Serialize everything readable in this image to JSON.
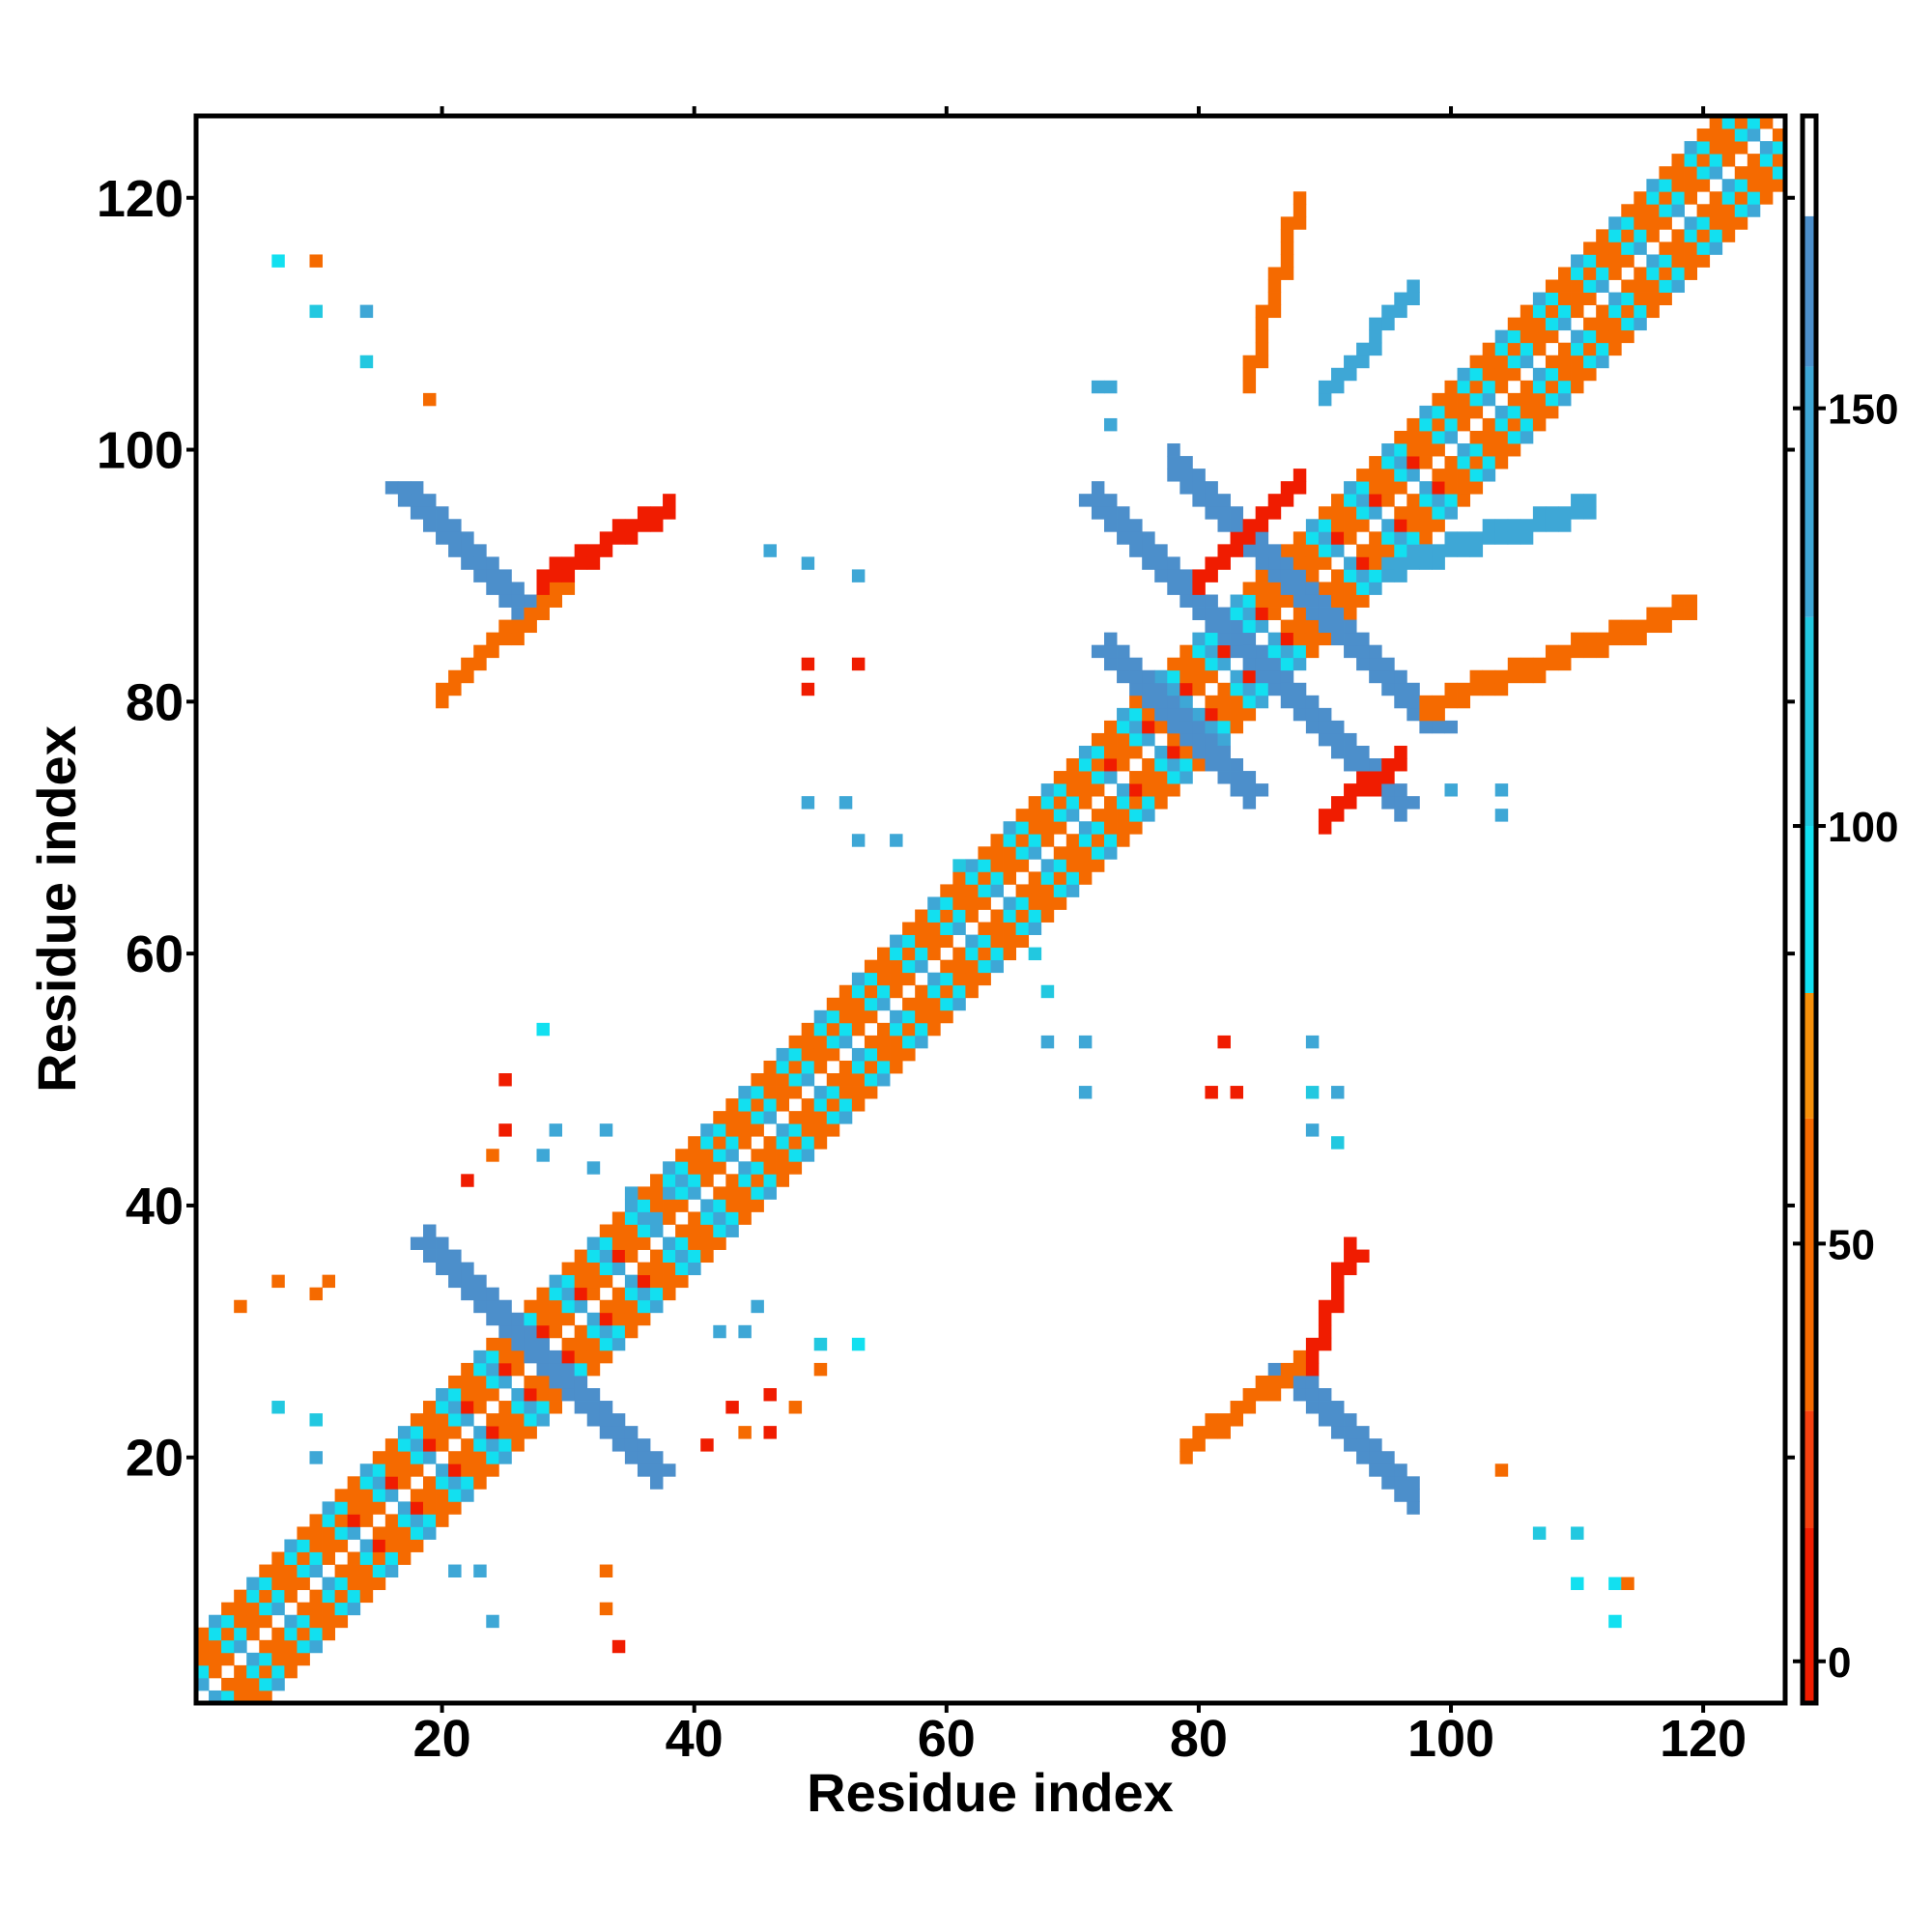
{
  "chart_data": {
    "type": "heatmap",
    "title": "",
    "xlabel": "Residue index",
    "ylabel": "Residue index",
    "xlim": [
      1,
      126
    ],
    "ylim": [
      1,
      126
    ],
    "x_ticks": [
      20,
      40,
      60,
      80,
      100,
      120
    ],
    "y_ticks": [
      20,
      40,
      60,
      80,
      100,
      120
    ],
    "colorbar": {
      "range": [
        -5,
        185
      ],
      "ticks": [
        0,
        50,
        100,
        150
      ],
      "bands": [
        {
          "from": -5,
          "to": 16,
          "color": "#f01c00"
        },
        {
          "from": 16,
          "to": 30,
          "color": "#f5400f"
        },
        {
          "from": 30,
          "to": 65,
          "color": "#f56a00"
        },
        {
          "from": 65,
          "to": 80,
          "color": "#f5900a"
        },
        {
          "from": 80,
          "to": 100,
          "color": "#12e0f0"
        },
        {
          "from": 100,
          "to": 125,
          "color": "#22c8e0"
        },
        {
          "from": 125,
          "to": 155,
          "color": "#3ea7d6"
        },
        {
          "from": 155,
          "to": 173,
          "color": "#4c8fcb"
        },
        {
          "from": 173,
          "to": 185,
          "color": "#ffffff"
        }
      ]
    },
    "colors": {
      "red": "#f01c00",
      "orange_red": "#f5400f",
      "orange": "#f56a00",
      "light_orange": "#f5900a",
      "cyan": "#12e0f0",
      "light_blue": "#22c8e0",
      "steel_blue": "#3ea7d6",
      "slate_blue": "#4c8fcb"
    },
    "series": [
      {
        "pattern": "diagonal-band",
        "from": 1,
        "to": 126,
        "halfwidth": 5,
        "value_cycle": [
          30,
          60,
          95,
          125,
          95,
          60
        ]
      },
      {
        "pattern": "helix-band",
        "from": 1,
        "to": 12,
        "halfwidth": 3,
        "value": 45
      },
      {
        "pattern": "helix-band",
        "from": 13,
        "to": 36,
        "halfwidth": 2,
        "value": 8
      },
      {
        "pattern": "helix-band",
        "from": 40,
        "to": 72,
        "halfwidth": 3,
        "value": 60
      },
      {
        "pattern": "helix-band",
        "from": 72,
        "to": 98,
        "halfwidth": 2,
        "value": 5
      },
      {
        "pattern": "helix-band",
        "from": 98,
        "to": 126,
        "halfwidth": 3,
        "value": 60
      },
      {
        "pattern": "anti-diagonal",
        "x_from": 19,
        "x_to": 37,
        "sum": 56,
        "halfwidth": 1,
        "value": 160
      },
      {
        "pattern": "anti-diagonal",
        "x_from": 72,
        "x_to": 96,
        "sum": 168,
        "halfwidth": 1,
        "value": 160
      },
      {
        "pattern": "anti-diagonal",
        "x_from": 73,
        "x_to": 84,
        "sum": 157,
        "halfwidth": 1,
        "value": 160
      },
      {
        "pattern": "anti-diagonal",
        "x_from": 78,
        "x_to": 96,
        "sum": 177,
        "halfwidth": 1,
        "value": 160
      },
      {
        "pattern": "anti-diagonal",
        "x_from": 18,
        "x_to": 27,
        "sum": 114,
        "halfwidth": 1,
        "value": 160
      },
      {
        "pattern": "anti-diagonal",
        "x_from": 88,
        "x_to": 97,
        "sum": 114,
        "halfwidth": 1,
        "value": 160
      },
      {
        "pattern": "line",
        "x_from": 20,
        "x_to": 30,
        "y_from": 80,
        "y_to": 89,
        "value": 40
      },
      {
        "pattern": "line",
        "x_from": 28,
        "x_to": 38,
        "y_from": 89,
        "y_to": 95,
        "value": 10
      },
      {
        "pattern": "line",
        "x_from": 80,
        "x_to": 88,
        "y_from": 89,
        "y_to": 97,
        "value": 10
      },
      {
        "pattern": "line",
        "x_from": 79,
        "x_to": 88,
        "y_from": 20,
        "y_to": 27,
        "value": 40
      },
      {
        "pattern": "line",
        "x_from": 89,
        "x_to": 92,
        "y_from": 27,
        "y_to": 36,
        "value": 10
      },
      {
        "pattern": "line",
        "x_from": 84,
        "x_to": 88,
        "y_from": 105,
        "y_to": 119,
        "value": 40
      },
      {
        "pattern": "line",
        "x_from": 90,
        "x_to": 97,
        "y_from": 104,
        "y_to": 112,
        "value": 150
      },
      {
        "pattern": "line",
        "x_from": 98,
        "x_to": 119,
        "y_from": 79,
        "y_to": 87,
        "value": 45
      },
      {
        "pattern": "line",
        "x_from": 90,
        "x_to": 96,
        "y_from": 70,
        "y_to": 75,
        "value": 10
      },
      {
        "pattern": "line",
        "x_from": 95,
        "x_to": 111,
        "y_from": 90,
        "y_to": 95,
        "value": 140
      }
    ],
    "points": [
      {
        "x": 7,
        "y": 115,
        "value": 95
      },
      {
        "x": 10,
        "y": 115,
        "value": 60
      },
      {
        "x": 10,
        "y": 111,
        "value": 100
      },
      {
        "x": 14,
        "y": 111,
        "value": 130
      },
      {
        "x": 14,
        "y": 107,
        "value": 100
      },
      {
        "x": 19,
        "y": 104,
        "value": 45
      },
      {
        "x": 36,
        "y": 94,
        "value": 10
      },
      {
        "x": 46,
        "y": 92,
        "value": 140
      },
      {
        "x": 49,
        "y": 91,
        "value": 145
      },
      {
        "x": 53,
        "y": 90,
        "value": 145
      },
      {
        "x": 49,
        "y": 83,
        "value": 10
      },
      {
        "x": 49,
        "y": 81,
        "value": 10
      },
      {
        "x": 53,
        "y": 83,
        "value": 10
      },
      {
        "x": 49,
        "y": 72,
        "value": 150
      },
      {
        "x": 52,
        "y": 72,
        "value": 150
      },
      {
        "x": 53,
        "y": 69,
        "value": 150
      },
      {
        "x": 56,
        "y": 69,
        "value": 140
      },
      {
        "x": 61,
        "y": 67,
        "value": 120
      },
      {
        "x": 67,
        "y": 60,
        "value": 120
      },
      {
        "x": 68,
        "y": 57,
        "value": 120
      },
      {
        "x": 68,
        "y": 53,
        "value": 150
      },
      {
        "x": 71,
        "y": 53,
        "value": 150
      },
      {
        "x": 71,
        "y": 49,
        "value": 150
      },
      {
        "x": 72,
        "y": 105,
        "value": 150
      },
      {
        "x": 73,
        "y": 105,
        "value": 130
      },
      {
        "x": 73,
        "y": 102,
        "value": 150
      },
      {
        "x": 82,
        "y": 53,
        "value": 10
      },
      {
        "x": 81,
        "y": 49,
        "value": 10
      },
      {
        "x": 83,
        "y": 49,
        "value": 10
      },
      {
        "x": 89,
        "y": 53,
        "value": 150
      },
      {
        "x": 89,
        "y": 49,
        "value": 120
      },
      {
        "x": 91,
        "y": 49,
        "value": 150
      },
      {
        "x": 89,
        "y": 46,
        "value": 130
      },
      {
        "x": 91,
        "y": 45,
        "value": 120
      },
      {
        "x": 93,
        "y": 36,
        "value": 10
      },
      {
        "x": 100,
        "y": 73,
        "value": 130
      },
      {
        "x": 104,
        "y": 73,
        "value": 130
      },
      {
        "x": 104,
        "y": 71,
        "value": 150
      },
      {
        "x": 105,
        "y": 94,
        "value": 150
      },
      {
        "x": 104,
        "y": 19,
        "value": 45
      },
      {
        "x": 107,
        "y": 14,
        "value": 100
      },
      {
        "x": 110,
        "y": 14,
        "value": 100
      },
      {
        "x": 110,
        "y": 10,
        "value": 95
      },
      {
        "x": 113,
        "y": 10,
        "value": 95
      },
      {
        "x": 114,
        "y": 10,
        "value": 60
      },
      {
        "x": 113,
        "y": 7,
        "value": 95
      },
      {
        "x": 7,
        "y": 24,
        "value": 110
      },
      {
        "x": 10,
        "y": 23,
        "value": 110
      },
      {
        "x": 10,
        "y": 20,
        "value": 130
      },
      {
        "x": 4,
        "y": 32,
        "value": 50
      },
      {
        "x": 7,
        "y": 34,
        "value": 60
      },
      {
        "x": 10,
        "y": 33,
        "value": 50
      },
      {
        "x": 11,
        "y": 34,
        "value": 45
      },
      {
        "x": 21,
        "y": 11,
        "value": 130
      },
      {
        "x": 23,
        "y": 11,
        "value": 130
      },
      {
        "x": 24,
        "y": 7,
        "value": 150
      },
      {
        "x": 33,
        "y": 11,
        "value": 50
      },
      {
        "x": 33,
        "y": 8,
        "value": 45
      },
      {
        "x": 34,
        "y": 5,
        "value": 10
      },
      {
        "x": 41,
        "y": 21,
        "value": 10
      },
      {
        "x": 43,
        "y": 24,
        "value": 10
      },
      {
        "x": 44,
        "y": 22,
        "value": 60
      },
      {
        "x": 46,
        "y": 22,
        "value": 10
      },
      {
        "x": 46,
        "y": 25,
        "value": 10
      },
      {
        "x": 48,
        "y": 24,
        "value": 45
      },
      {
        "x": 50,
        "y": 27,
        "value": 45
      },
      {
        "x": 50,
        "y": 29,
        "value": 120
      },
      {
        "x": 53,
        "y": 29,
        "value": 95
      },
      {
        "x": 45,
        "y": 32,
        "value": 150
      },
      {
        "x": 42,
        "y": 30,
        "value": 130
      },
      {
        "x": 44,
        "y": 30,
        "value": 130
      },
      {
        "x": 28,
        "y": 54,
        "value": 95
      },
      {
        "x": 25,
        "y": 50,
        "value": 10
      },
      {
        "x": 25,
        "y": 46,
        "value": 10
      },
      {
        "x": 24,
        "y": 44,
        "value": 60
      },
      {
        "x": 22,
        "y": 42,
        "value": 10
      },
      {
        "x": 28,
        "y": 44,
        "value": 130
      },
      {
        "x": 29,
        "y": 46,
        "value": 130
      },
      {
        "x": 33,
        "y": 46,
        "value": 150
      },
      {
        "x": 32,
        "y": 43,
        "value": 150
      },
      {
        "x": 35,
        "y": 41,
        "value": 150
      },
      {
        "x": 37,
        "y": 39,
        "value": 150
      },
      {
        "x": 38,
        "y": 41,
        "value": 150
      }
    ]
  }
}
